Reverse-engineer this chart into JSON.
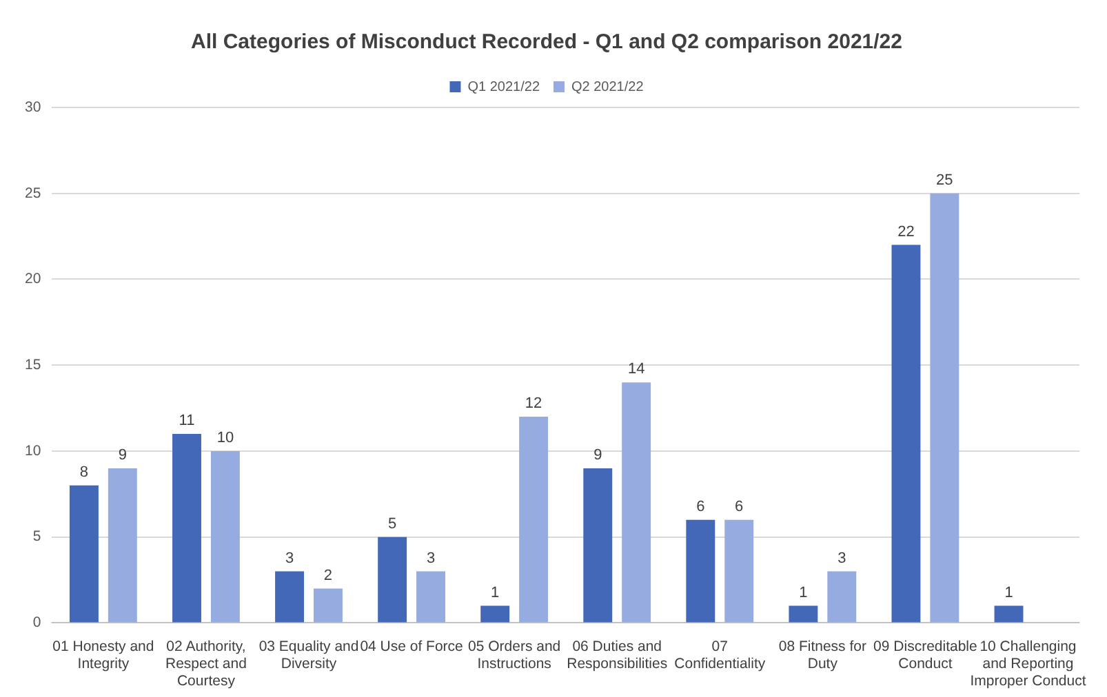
{
  "chart_data": {
    "type": "bar",
    "title": "All Categories of Misconduct Recorded - Q1 and Q2 comparison 2021/22",
    "categories": [
      "01 Honesty and Integrity",
      "02 Authority, Respect and Courtesy",
      "03 Equality and Diversity",
      "04 Use of Force",
      "05 Orders and Instructions",
      "06 Duties and Responsibilities",
      "07 Confidentiality",
      "08 Fitness for Duty",
      "09 Discreditable Conduct",
      "10 Challenging and Reporting Improper Conduct"
    ],
    "series": [
      {
        "name": "Q1 2021/22",
        "color": "#4468b8",
        "values": [
          8,
          11,
          3,
          5,
          1,
          9,
          6,
          1,
          22,
          1
        ]
      },
      {
        "name": "Q2 2021/22",
        "color": "#96abdf",
        "values": [
          9,
          10,
          2,
          3,
          12,
          14,
          6,
          3,
          25,
          null
        ]
      }
    ],
    "ylim": [
      0,
      30
    ],
    "yticks": [
      0,
      5,
      10,
      15,
      20,
      25,
      30
    ],
    "grid": "y",
    "legend": "top",
    "data_labels": true
  }
}
